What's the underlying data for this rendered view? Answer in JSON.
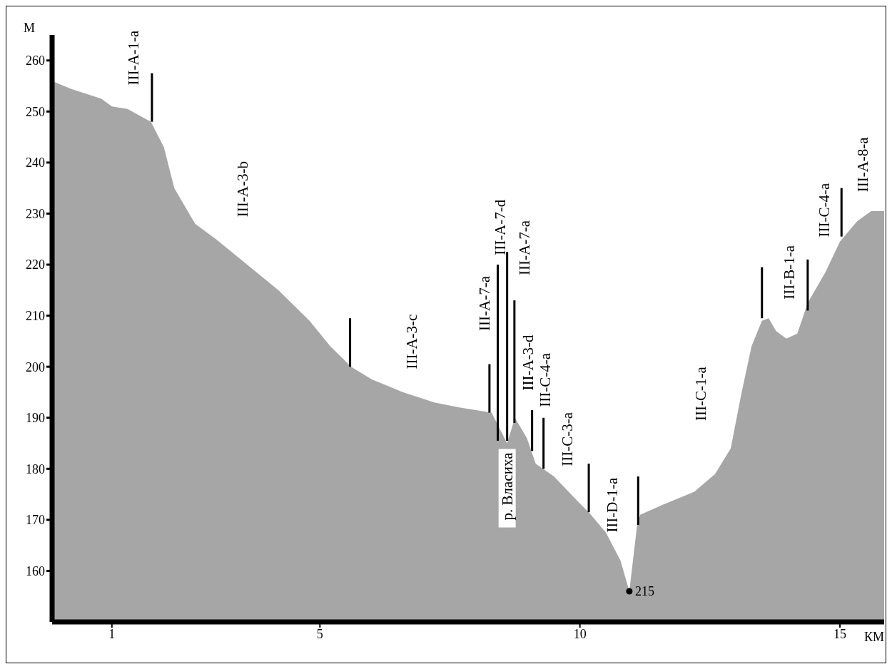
{
  "chart_data": {
    "type": "area",
    "xlabel": "КМ",
    "ylabel": "М",
    "xlim": [
      -0.15,
      15.85
    ],
    "xticks": [
      1,
      5,
      10,
      15
    ],
    "ylim": [
      150,
      265
    ],
    "yticks": [
      160,
      170,
      180,
      190,
      200,
      210,
      220,
      230,
      240,
      250,
      260
    ],
    "series": [
      {
        "color": "#a6a6a6",
        "x": [
          -0.15,
          0.2,
          0.8,
          1.0,
          1.3,
          1.75,
          2.0,
          2.2,
          2.6,
          3.0,
          3.6,
          4.2,
          4.8,
          5.2,
          5.6,
          6.0,
          6.6,
          7.2,
          7.7,
          8.3,
          8.45,
          8.6,
          8.75,
          8.98,
          9.15,
          9.5,
          9.97,
          10.17,
          10.5,
          10.78,
          10.95,
          11.1,
          11.16,
          11.6,
          12.2,
          12.6,
          12.9,
          13.1,
          13.3,
          13.5,
          13.63,
          13.77,
          13.97,
          14.18,
          14.38,
          14.72,
          15.0,
          15.33,
          15.6,
          15.85
        ],
        "values": [
          256,
          254.5,
          252.5,
          251,
          250.5,
          248,
          243,
          235,
          228,
          225,
          220,
          215,
          209,
          204,
          200,
          197.5,
          195,
          193,
          192,
          191,
          188,
          185,
          190,
          186,
          181,
          178.5,
          173.5,
          171.5,
          167.5,
          162,
          156,
          169,
          171,
          173,
          175.5,
          179,
          184,
          194.5,
          204,
          209,
          209.5,
          207,
          205.5,
          206.5,
          212.5,
          218.5,
          224.5,
          228.5,
          230.5,
          230.5
        ]
      },
      {
        "type": "line",
        "color": "#000000",
        "x": [
          1.77,
          1.77
        ],
        "values": [
          248,
          257.5
        ]
      },
      {
        "type": "line",
        "color": "#000000",
        "x": [
          5.58,
          5.58
        ],
        "values": [
          200,
          209.5
        ]
      },
      {
        "type": "line",
        "color": "#000000",
        "x": [
          8.26,
          8.26
        ],
        "values": [
          191,
          200.5
        ]
      },
      {
        "type": "line",
        "color": "#000000",
        "x": [
          8.42,
          8.42
        ],
        "values": [
          185.5,
          220
        ]
      },
      {
        "type": "line",
        "color": "#000000",
        "x": [
          8.6,
          8.6
        ],
        "values": [
          185.5,
          222.5
        ]
      },
      {
        "type": "line",
        "color": "#000000",
        "x": [
          8.74,
          8.74
        ],
        "values": [
          189,
          213
        ]
      },
      {
        "type": "line",
        "color": "#000000",
        "x": [
          9.08,
          9.08
        ],
        "values": [
          183.5,
          191.5
        ]
      },
      {
        "type": "line",
        "color": "#000000",
        "x": [
          9.3,
          9.3
        ],
        "values": [
          180,
          190
        ]
      },
      {
        "type": "line",
        "color": "#000000",
        "x": [
          10.17,
          10.17
        ],
        "values": [
          171.5,
          181
        ]
      },
      {
        "type": "line",
        "color": "#000000",
        "x": [
          11.12,
          11.12
        ],
        "values": [
          169,
          178.5
        ]
      },
      {
        "type": "line",
        "color": "#000000",
        "x": [
          13.5,
          13.5
        ],
        "values": [
          209.5,
          219.5
        ]
      },
      {
        "type": "line",
        "color": "#000000",
        "x": [
          14.38,
          14.38
        ],
        "values": [
          211,
          221
        ]
      },
      {
        "type": "line",
        "color": "#000000",
        "x": [
          15.03,
          15.03
        ],
        "values": [
          225.5,
          235
        ]
      },
      {
        "type": "scatter",
        "color": "#000000",
        "marker": "circle",
        "x": [
          10.95
        ],
        "values": [
          156
        ]
      }
    ],
    "annotations": [
      "III-A-1-a",
      "III-A-3-b",
      "III-A-3-c",
      "III-A-7-a",
      "III-A-7-d",
      "III-A-7-a",
      "III-A-3-d",
      "III-C-4-a",
      "III-C-3-a",
      "III-D-1-a",
      "III-C-1-a",
      "III-B-1-a",
      "III-C-4-a",
      "III-A-8-a",
      {
        "text": "р. Власиха",
        "x": 8.6,
        "y": 185
      },
      {
        "text": "215",
        "x": 10.95,
        "y": 156
      }
    ]
  }
}
